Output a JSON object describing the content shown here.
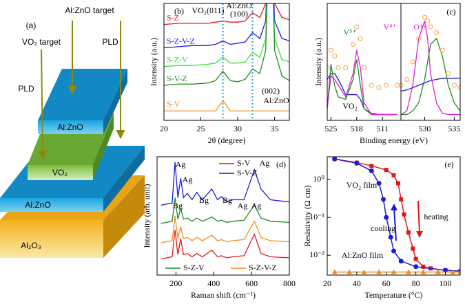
{
  "diagram": {
    "label": "(a)",
    "al_target": "Al:ZnO target",
    "vo2_target": "VO₂ target",
    "pld_right": "PLD",
    "pld_left": "PLD",
    "top_layer": "Al:ZnO",
    "middle_layer": "VO₂",
    "bottom_layer": "Al:ZnO",
    "substrate": "Al₂O₃"
  },
  "chart_data": [
    {
      "type": "line",
      "panel_label": "(b)",
      "xlabel": "2θ (degree)",
      "ylabel": "Intensity (a.u.)",
      "x": [
        20,
        22,
        24,
        26,
        27,
        28,
        29,
        30,
        31,
        32,
        33,
        33.8,
        34.4,
        35,
        36,
        37
      ],
      "xlim": [
        20,
        37
      ],
      "xticks": [
        20,
        25,
        30,
        35
      ],
      "ylim": [
        0,
        100
      ],
      "reference_lines": [
        28,
        32
      ],
      "reference_color": "#2a9fd8",
      "annotations": [
        "VO₂(011)",
        "Al:ZnO",
        "(100)",
        "(002)",
        "Al:ZnO"
      ],
      "series": [
        {
          "name": "S-Z",
          "color": "#e8141b",
          "values": [
            82,
            83,
            83,
            83,
            84,
            85,
            84,
            84,
            85,
            92,
            88,
            100,
            200,
            100,
            88,
            86
          ]
        },
        {
          "name": "S-Z-V-Z",
          "color": "#1a1adc",
          "values": [
            62,
            63,
            64,
            64,
            65,
            68,
            65,
            66,
            67,
            75,
            70,
            85,
            200,
            85,
            70,
            68
          ]
        },
        {
          "name": "S-Z-V",
          "color": "#33e033",
          "values": [
            46,
            47,
            47,
            48,
            49,
            54,
            49,
            49,
            50,
            58,
            54,
            70,
            200,
            70,
            52,
            50
          ]
        },
        {
          "name": "S-V-Z",
          "color": "#1f8a1f",
          "values": [
            30,
            31,
            31,
            32,
            34,
            42,
            34,
            33,
            35,
            44,
            40,
            60,
            200,
            60,
            38,
            34
          ]
        },
        {
          "name": "S-V",
          "color": "#f28c1e",
          "values": [
            8,
            8,
            8,
            8,
            8,
            17,
            8,
            8,
            8,
            8,
            8,
            8,
            8,
            8,
            8,
            8
          ]
        }
      ]
    },
    {
      "type": "xps",
      "panel_label": "(c)",
      "xlabel": "Binding energy (eV)",
      "ylabel": "Intensity (a.u.)",
      "ylim": [
        0,
        100
      ],
      "annotations": [
        "V⁵⁺",
        "V⁴⁺",
        "O1s",
        "VO₂"
      ],
      "segments": [
        {
          "xlim": [
            526,
            506
          ],
          "xticks": [
            525,
            518,
            511
          ],
          "x": [
            526,
            525,
            524,
            523,
            521,
            519,
            518,
            517,
            516,
            514,
            512,
            510,
            507
          ],
          "series": [
            {
              "color": "#1a1adc",
              "values": [
                35,
                40,
                40,
                35,
                22,
                22,
                22,
                18,
                10,
                6,
                5,
                5,
                5
              ]
            },
            {
              "name": "V⁵⁺",
              "color": "#1f8a1f",
              "values": [
                10,
                48,
                30,
                20,
                18,
                35,
                52,
                30,
                10,
                5,
                5,
                5,
                5
              ]
            },
            {
              "name": "V⁴⁺",
              "color": "#e01fd0",
              "values": [
                10,
                38,
                35,
                30,
                20,
                40,
                60,
                45,
                15,
                5,
                5,
                5,
                5
              ]
            },
            {
              "color": "#f5a24a",
              "marker": "circle",
              "values": [
                45,
                60,
                55,
                45,
                45,
                65,
                80,
                70,
                45,
                30,
                28,
                30,
                30
              ]
            }
          ]
        },
        {
          "xlim": [
            526,
            536
          ],
          "xticks": [
            530,
            535
          ],
          "x": [
            526,
            527,
            528,
            529,
            530,
            530.5,
            531,
            532,
            533,
            534,
            535,
            536
          ],
          "series": [
            {
              "color": "#1a1adc",
              "values": [
                25,
                26,
                28,
                30,
                32,
                33,
                34,
                35,
                36,
                36,
                36,
                36
              ]
            },
            {
              "color": "#e01fd0",
              "values": [
                5,
                8,
                30,
                70,
                85,
                70,
                40,
                15,
                6,
                5,
                5,
                5
              ]
            },
            {
              "color": "#1f8a1f",
              "values": [
                5,
                5,
                8,
                15,
                35,
                50,
                65,
                70,
                55,
                30,
                15,
                8
              ]
            },
            {
              "color": "#f5a24a",
              "marker": "circle",
              "values": [
                30,
                35,
                50,
                70,
                88,
                85,
                80,
                75,
                60,
                40,
                30,
                28
              ]
            }
          ]
        }
      ]
    },
    {
      "type": "line",
      "panel_label": "(d)",
      "xlabel": "Raman shift (cm⁻¹)",
      "ylabel": "Intensity (arb. unit)",
      "x": [
        120,
        180,
        195,
        210,
        225,
        240,
        260,
        285,
        310,
        340,
        390,
        420,
        440,
        470,
        500,
        560,
        615,
        650,
        700,
        800
      ],
      "xlim": [
        100,
        800
      ],
      "xticks": [
        200,
        400,
        600,
        800
      ],
      "ylim": [
        -10,
        100
      ],
      "annotations": [
        "Ag",
        "Ag",
        "Bg",
        "Bg",
        "Bg",
        "Ag",
        "Ag",
        "Ag"
      ],
      "series": [
        {
          "name": "S-V",
          "color": "#e8141b",
          "values": [
            5,
            7,
            32,
            9,
            24,
            9,
            10,
            7,
            10,
            7,
            13,
            7,
            8,
            6,
            7,
            8,
            28,
            10,
            7,
            6
          ]
        },
        {
          "name": "S-V-Z",
          "color": "#1a1adc",
          "values": [
            55,
            57,
            95,
            62,
            80,
            62,
            66,
            60,
            67,
            60,
            70,
            60,
            63,
            58,
            60,
            60,
            88,
            70,
            60,
            58
          ]
        },
        {
          "name": "S-Z-V",
          "color": "#1f8a1f",
          "values": [
            38,
            40,
            62,
            42,
            52,
            42,
            43,
            40,
            43,
            40,
            44,
            40,
            41,
            39,
            40,
            41,
            55,
            43,
            40,
            39
          ]
        },
        {
          "name": "S-Z-V-Z",
          "color": "#f28c1e",
          "values": [
            20,
            22,
            45,
            24,
            35,
            24,
            25,
            22,
            25,
            22,
            27,
            22,
            23,
            21,
            22,
            23,
            40,
            25,
            22,
            21
          ]
        }
      ]
    },
    {
      "type": "log-line",
      "panel_label": "(e)",
      "xlabel": "Temperature (°C)",
      "ylabel": "Resistivity (Ω cm)",
      "xlim": [
        20,
        110
      ],
      "xticks": [
        20,
        40,
        60,
        80,
        100
      ],
      "ylim": [
        0.003,
        4
      ],
      "log_y": true,
      "yticks": [
        {
          "value": 1,
          "label": "10⁰"
        },
        {
          "value": 0.1,
          "label": "10⁻¹"
        },
        {
          "value": 0.01,
          "label": "10⁻²"
        }
      ],
      "annotations": [
        "VO₂ film",
        "heating",
        "cooling",
        "Al:ZnO film"
      ],
      "series": [
        {
          "color": "#e8141b",
          "marker": "square",
          "x": [
            25,
            40,
            50,
            60,
            65,
            68,
            70,
            72,
            75,
            78,
            80,
            85,
            90,
            100
          ],
          "values": [
            3.5,
            2.8,
            2.3,
            1.8,
            1.3,
            0.8,
            0.3,
            0.12,
            0.04,
            0.015,
            0.008,
            0.005,
            0.0045,
            0.004
          ]
        },
        {
          "color": "#1a1adc",
          "marker": "circle",
          "x": [
            25,
            40,
            50,
            55,
            58,
            60,
            63,
            65,
            70,
            80,
            100,
            110
          ],
          "values": [
            3.5,
            2.7,
            1.7,
            0.8,
            0.3,
            0.1,
            0.03,
            0.013,
            0.007,
            0.005,
            0.004,
            0.0038
          ]
        },
        {
          "color": "#f28c1e",
          "marker": "triangle",
          "x": [
            25,
            35,
            45,
            55,
            65,
            75,
            85,
            95,
            105,
            110
          ],
          "values": [
            0.0036,
            0.0036,
            0.0036,
            0.0036,
            0.0036,
            0.0036,
            0.0036,
            0.0036,
            0.0036,
            0.0036
          ]
        }
      ]
    }
  ]
}
